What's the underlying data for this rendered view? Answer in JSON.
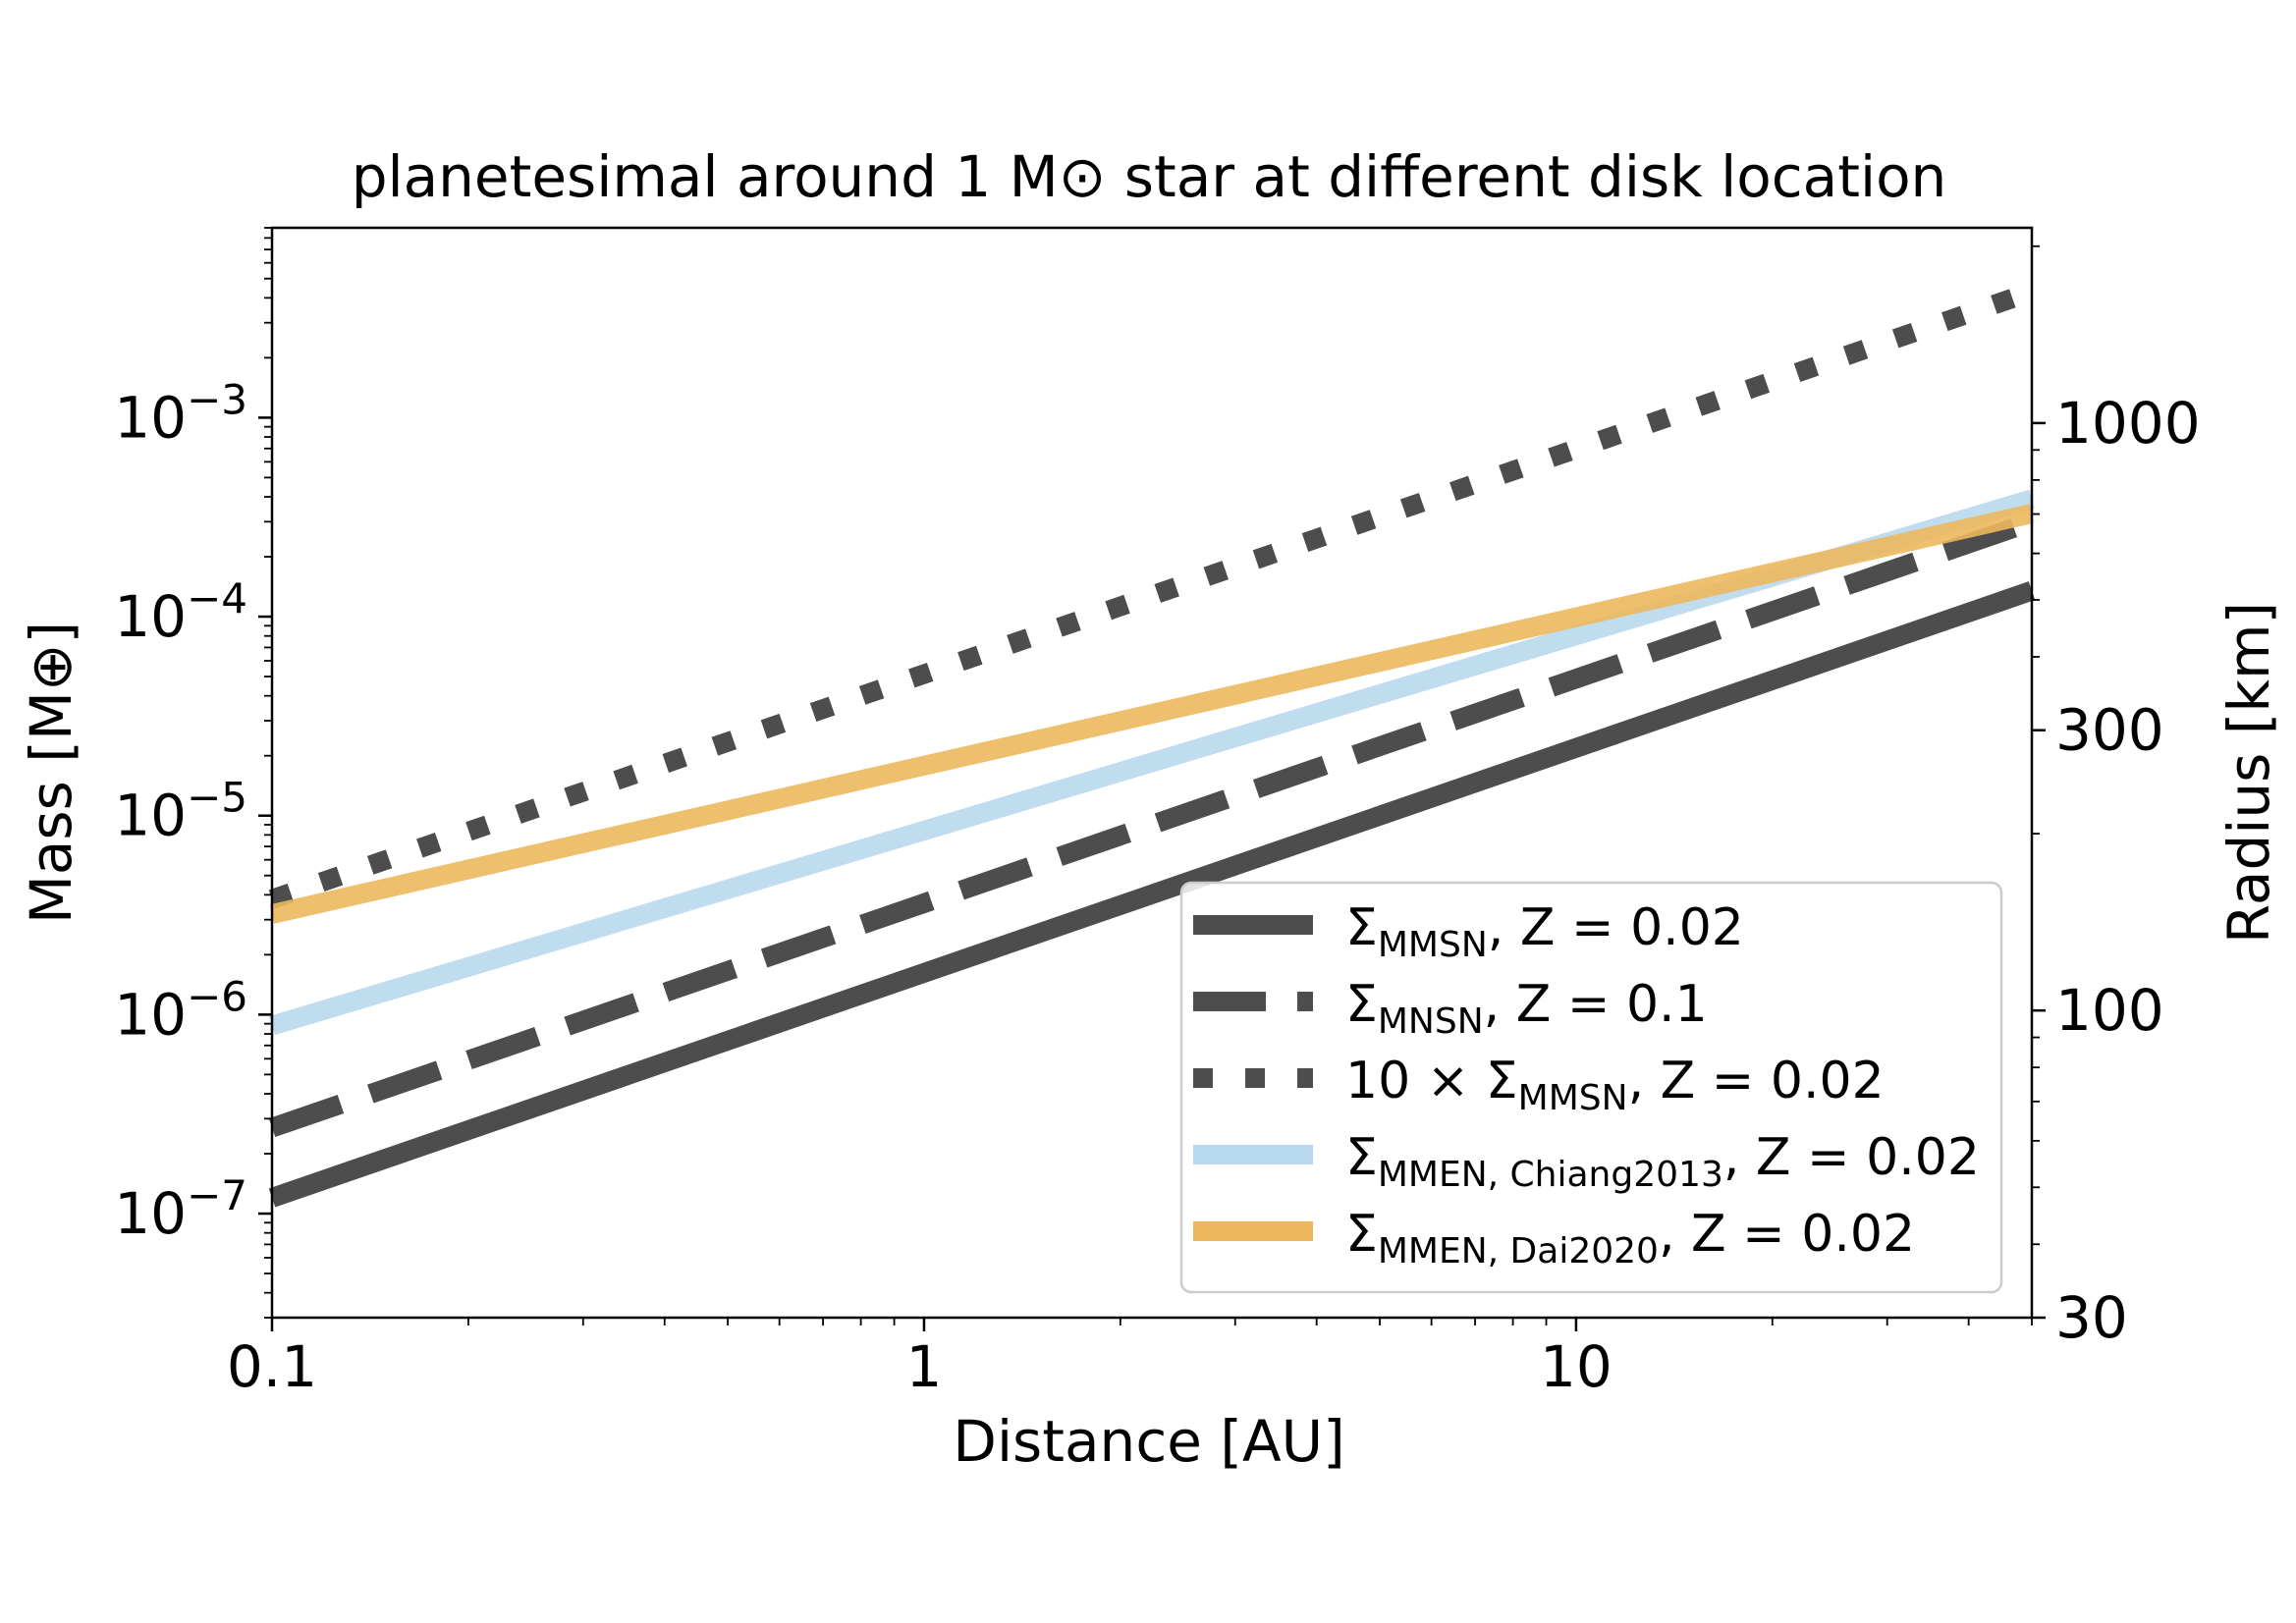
{
  "chart_data": {
    "type": "line",
    "title": "planetesimal around 1 M⊙ star at different disk location",
    "xlabel": "Distance [AU]",
    "ylabel": "Mass [M⊕]",
    "y2label": "Radius [km]",
    "xscale": "log",
    "yscale": "log",
    "xlim": [
      0.1,
      50
    ],
    "ylim": [
      3e-08,
      0.009
    ],
    "x_ticks": [
      {
        "value": 0.1,
        "label": "0.1"
      },
      {
        "value": 1,
        "label": "1"
      },
      {
        "value": 10,
        "label": "10"
      }
    ],
    "y_ticks": [
      {
        "value": 1e-07,
        "base": "10",
        "exp": "−7"
      },
      {
        "value": 1e-06,
        "base": "10",
        "exp": "−6"
      },
      {
        "value": 1e-05,
        "base": "10",
        "exp": "−5"
      },
      {
        "value": 0.0001,
        "base": "10",
        "exp": "−4"
      },
      {
        "value": 0.001,
        "base": "10",
        "exp": "−3"
      }
    ],
    "y2_ticks": [
      {
        "value": 30,
        "label": "30"
      },
      {
        "value": 100,
        "label": "100"
      },
      {
        "value": 300,
        "label": "300"
      },
      {
        "value": 1000,
        "label": "1000"
      }
    ],
    "y2lim_km": [
      30,
      2150
    ],
    "legend_position": "lower-right",
    "series": [
      {
        "name": "Σ_MMSN, Z = 0.02",
        "label": {
          "sym": "Σ",
          "sub": "MMSN",
          "rest": ", Z = 0.02"
        },
        "style": "solid",
        "color": "#4d4d4d",
        "x": [
          0.1,
          50
        ],
        "y": [
          1.2e-07,
          0.000135
        ]
      },
      {
        "name": "Σ_MNSN, Z = 0.1",
        "label": {
          "sym": "Σ",
          "sub": "MNSN",
          "rest": ", Z = 0.1"
        },
        "style": "dashed",
        "color": "#4d4d4d",
        "x": [
          0.1,
          50
        ],
        "y": [
          2.7e-07,
          0.0003
        ]
      },
      {
        "name": "10 × Σ_MMSN, Z = 0.02",
        "label": {
          "sym": "10 × Σ",
          "sub": "MMSN",
          "rest": ", Z = 0.02"
        },
        "style": "dotted",
        "color": "#4d4d4d",
        "x": [
          0.1,
          50
        ],
        "y": [
          3.8e-06,
          0.0043
        ]
      },
      {
        "name": "Σ_MMEN,Chiang2013, Z = 0.02",
        "label": {
          "sym": "Σ",
          "sub": "MMEN, Chiang2013",
          "rest": ", Z = 0.02"
        },
        "style": "solid",
        "color": "#b9d9ee",
        "x": [
          0.1,
          50
        ],
        "y": [
          8.8e-07,
          0.00039
        ]
      },
      {
        "name": "Σ_MMEN,Dai2020, Z = 0.02",
        "label": {
          "sym": "Σ",
          "sub": "MMEN, Dai2020",
          "rest": ", Z = 0.02"
        },
        "style": "solid",
        "color": "#ecb85d",
        "x": [
          0.1,
          50
        ],
        "y": [
          3.2e-06,
          0.00033
        ]
      }
    ]
  }
}
